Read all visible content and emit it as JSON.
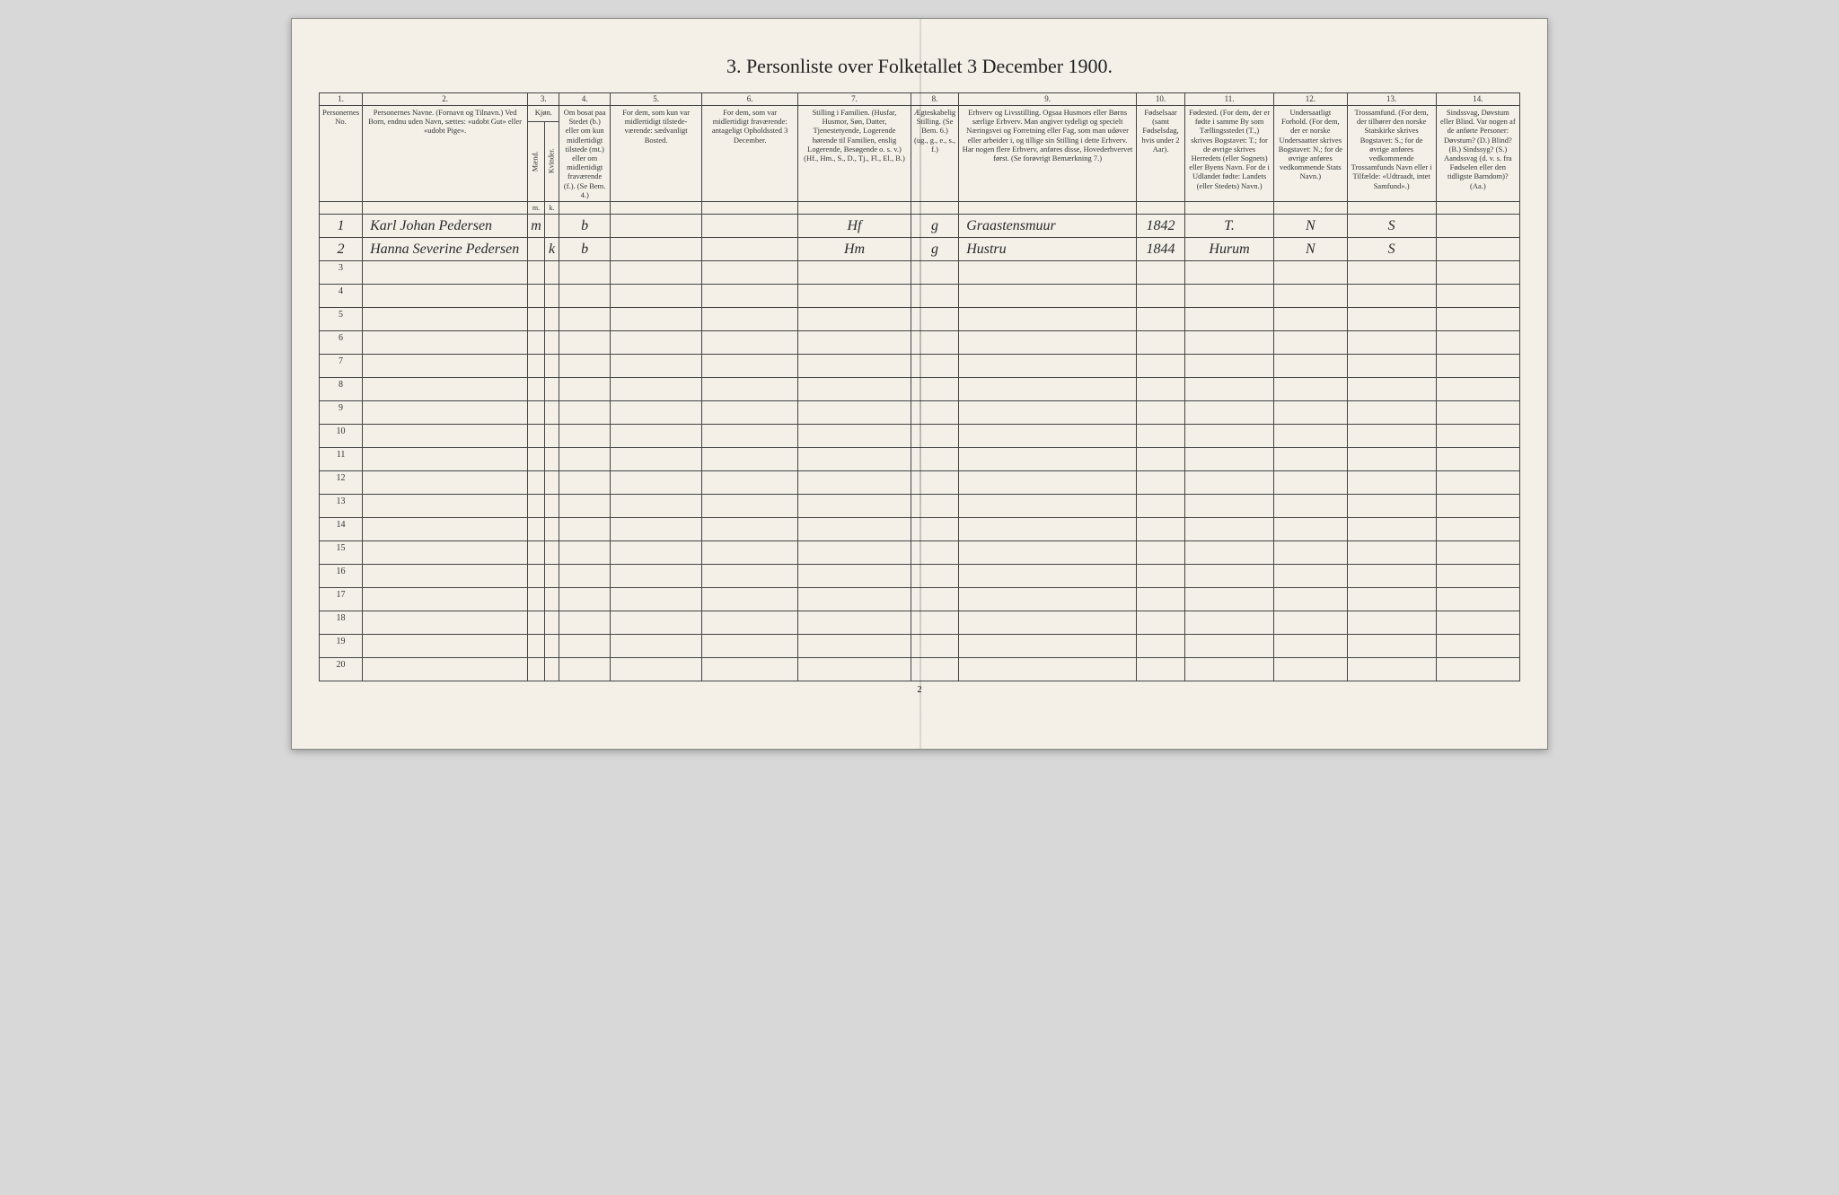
{
  "title": "3. Personliste over Folketallet 3 December 1900.",
  "page_number": "2",
  "column_numbers": [
    "1.",
    "2.",
    "3.",
    "4.",
    "5.",
    "6.",
    "7.",
    "8.",
    "9.",
    "10.",
    "11.",
    "12.",
    "13.",
    "14."
  ],
  "columns": {
    "c1": "Personernes No.",
    "c2": "Personernes Navne.\n(Fornavn og Tilnavn.)\nVed Born, endnu uden Navn, sættes: «udobt Gut» eller «udobt Pige».",
    "c3_top": "Kjøn.",
    "c3_m": "Mænd.",
    "c3_k": "Kvinder.",
    "c4": "Om bosat paa Stedet (b.) eller om kun midlertidigt tilstede (mt.) eller om midlertidigt fraværende (f.). (Se Bem. 4.)",
    "c5": "For dem, som kun var midlertidigt tilstede-værende:\nsædvanligt Bosted.",
    "c6": "For dem, som var midlertidigt fraværende:\nantageligt Opholdssted 3 December.",
    "c7": "Stilling i Familien.\n(Husfar, Husmor, Søn, Datter, Tjenestetyende, Logerende hørende til Familien, enslig Logerende, Besøgende o. s. v.)\n(Hf., Hm., S., D., Tj., Fl., El., B.)",
    "c8": "Ægteskabelig Stilling.\n(Se Bem. 6.)\n(ug., g., e., s., f.)",
    "c9": "Erhverv og Livsstilling.\nOgsaa Husmors eller Børns særlige Erhverv. Man angiver tydeligt og specielt Næringsvei og Forretning eller Fag, som man udøver eller arbeider i, og tillige sin Stilling i dette Erhverv. Har nogen flere Erhverv, anføres disse, Hovederhvervet først.\n(Se forøvrigt Bemærkning 7.)",
    "c10": "Fødselsaar\n(samt Fødselsdag, hvis under 2 Aar).",
    "c11": "Fødested.\n(For dem, der er fødte i samme By som Tællingsstedet (T.,) skrives Bogstavet: T.; for de øvrige skrives Herredets (eller Sognets) eller Byens Navn. For de i Udlandet fødte: Landets (eller Stedets) Navn.)",
    "c12": "Undersaatligt Forhold.\n(For dem, der er norske Undersaatter skrives Bogstavet: N.; for de øvrige anføres vedkommende Stats Navn.)",
    "c13": "Trossamfund.\n(For dem, der tilhører den norske Statskirke skrives Bogstavet: S.; for de øvrige anføres vedkommende Trossamfunds Navn eller i Tilfælde: «Udtraadt, intet Samfund».)",
    "c14": "Sindssvag, Døvstum eller Blind.\nVar nogen af de anførte Personer:\nDøvstum? (D.)\nBlind? (B.)\nSindssyg? (S.)\nAandssvag (d. v. s. fra Fødselen eller den tidligste Barndom)? (Aa.)"
  },
  "col_widths": {
    "c1": "22px",
    "c2": "200px",
    "c3m": "14px",
    "c3k": "14px",
    "c4": "58px",
    "c5": "110px",
    "c6": "115px",
    "c7": "135px",
    "c8": "50px",
    "c9": "210px",
    "c10": "55px",
    "c11": "105px",
    "c12": "85px",
    "c13": "105px",
    "c14": "100px"
  },
  "rows": [
    {
      "n": "1",
      "name": "Karl Johan Pedersen",
      "m": "m",
      "k": "",
      "c4": "b",
      "c5": "",
      "c6": "",
      "c7": "Hf",
      "c8": "g",
      "c9": "Graastensmuur",
      "c10": "1842",
      "c11": "T.",
      "c12": "N",
      "c13": "S",
      "c14": ""
    },
    {
      "n": "2",
      "name": "Hanna Severine Pedersen",
      "m": "",
      "k": "k",
      "c4": "b",
      "c5": "",
      "c6": "",
      "c7": "Hm",
      "c8": "g",
      "c9": "Hustru",
      "c10": "1844",
      "c11": "Hurum",
      "c12": "N",
      "c13": "S",
      "c14": ""
    }
  ],
  "empty_row_numbers": [
    "3",
    "4",
    "5",
    "6",
    "7",
    "8",
    "9",
    "10",
    "11",
    "12",
    "13",
    "14",
    "15",
    "16",
    "17",
    "18",
    "19",
    "20"
  ],
  "colors": {
    "page_bg": "#f4f0e8",
    "body_bg": "#d8d8d8",
    "border": "#444444",
    "text": "#333333"
  }
}
